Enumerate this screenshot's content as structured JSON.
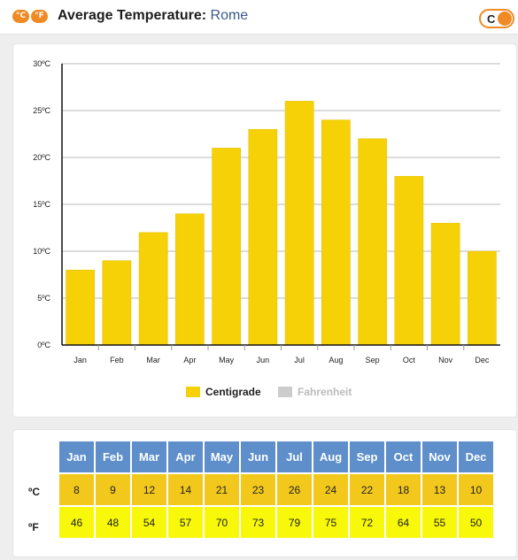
{
  "header": {
    "celsius_badge": "°C",
    "fahrenheit_badge": "°F",
    "title_label": "Average Temperature:",
    "city": "Rome",
    "toggle_label": "C"
  },
  "colors": {
    "accent": "#f08a24",
    "bar": "#f6d107",
    "bar_border": "#e3bf00",
    "celsius_cell": "#f3c81c",
    "fahrenheit_cell": "#f8f80a",
    "month_header": "#5e8fca",
    "legend_inactive": "#cccccc"
  },
  "legend": {
    "centigrade": "Centigrade",
    "fahrenheit": "Fahrenheit"
  },
  "chart_data": {
    "type": "bar",
    "title": "",
    "xlabel": "",
    "ylabel": "",
    "categories": [
      "Jan",
      "Feb",
      "Mar",
      "Apr",
      "May",
      "Jun",
      "Jul",
      "Aug",
      "Sep",
      "Oct",
      "Nov",
      "Dec"
    ],
    "series": [
      {
        "name": "Centigrade",
        "values": [
          8,
          9,
          12,
          14,
          21,
          23,
          26,
          24,
          22,
          18,
          13,
          10
        ]
      }
    ],
    "ylim": [
      0,
      30
    ],
    "yticks": [
      0,
      5,
      10,
      15,
      20,
      25,
      30
    ],
    "ytick_labels": [
      "0ºC",
      "5ºC",
      "10ºC",
      "15ºC",
      "20ºC",
      "25ºC",
      "30ºC"
    ],
    "grid": true,
    "legend_position": "bottom-center"
  },
  "table": {
    "celsius_label": "ºC",
    "fahrenheit_label": "ºF",
    "months": [
      "Jan",
      "Feb",
      "Mar",
      "Apr",
      "May",
      "Jun",
      "Jul",
      "Aug",
      "Sep",
      "Oct",
      "Nov",
      "Dec"
    ],
    "celsius": [
      "8",
      "9",
      "12",
      "14",
      "21",
      "23",
      "26",
      "24",
      "22",
      "18",
      "13",
      "10"
    ],
    "fahrenheit": [
      "46",
      "48",
      "54",
      "57",
      "70",
      "73",
      "79",
      "75",
      "72",
      "64",
      "55",
      "50"
    ]
  }
}
